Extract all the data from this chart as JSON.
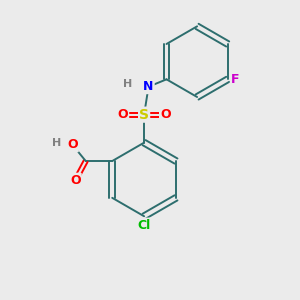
{
  "background_color": "#ebebeb",
  "atom_colors": {
    "C": "#2d6e6e",
    "H": "#808080",
    "N": "#0000ff",
    "O": "#ff0000",
    "S": "#cccc00",
    "F": "#cc00cc",
    "Cl": "#00bb00"
  },
  "bond_color": "#2d6e6e",
  "font_size": 9,
  "figsize": [
    3.0,
    3.0
  ],
  "dpi": 100
}
